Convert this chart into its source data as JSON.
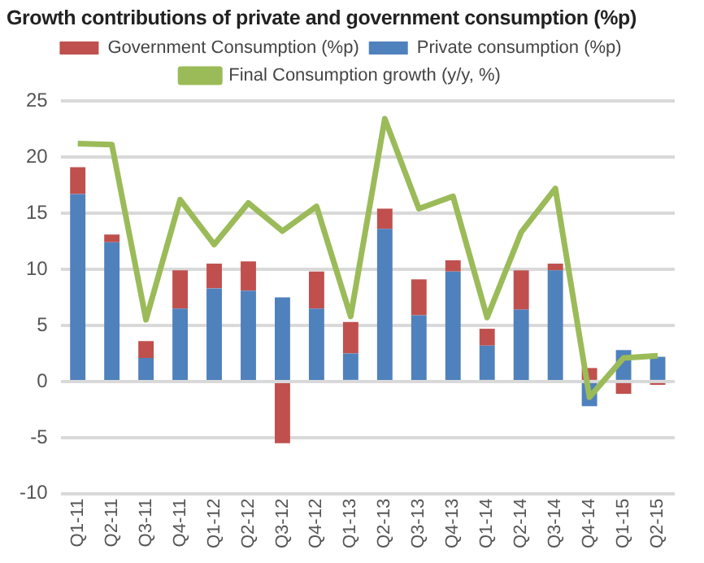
{
  "chart_data": {
    "type": "bar",
    "title": "Growth contributions of private and government consumption (%p)",
    "categories": [
      "Q1-11",
      "Q2-11",
      "Q3-11",
      "Q4-11",
      "Q1-12",
      "Q2-12",
      "Q3-12",
      "Q4-12",
      "Q1-13",
      "Q2-13",
      "Q3-13",
      "Q4-13",
      "Q1-14",
      "Q2-14",
      "Q3-14",
      "Q4-14",
      "Q1-15",
      "Q2-15"
    ],
    "stacked": true,
    "series": [
      {
        "name": "Private consumption (%p)",
        "color": "#4f81bd",
        "values": [
          16.7,
          12.4,
          2.1,
          6.5,
          8.3,
          8.1,
          7.5,
          6.5,
          2.5,
          13.6,
          5.9,
          9.8,
          3.2,
          6.4,
          9.9,
          -2.2,
          2.8,
          2.2
        ]
      },
      {
        "name": "Government Consumption (%p)",
        "color": "#c0504d",
        "values": [
          2.4,
          0.7,
          1.5,
          3.4,
          2.2,
          2.6,
          -5.5,
          3.3,
          2.8,
          1.8,
          3.2,
          1.0,
          1.5,
          3.5,
          0.6,
          1.2,
          -1.1,
          -0.3
        ]
      },
      {
        "name": "Final Consumption growth (y/y, %)",
        "type": "line",
        "color": "#9bbb59",
        "values": [
          21.2,
          21.1,
          5.5,
          16.2,
          12.2,
          15.9,
          13.4,
          15.6,
          5.8,
          23.4,
          15.4,
          16.5,
          5.7,
          13.3,
          17.2,
          -1.4,
          2.1,
          2.3
        ]
      }
    ],
    "ylim": [
      -10,
      25
    ],
    "yticks": [
      -10,
      -5,
      0,
      5,
      10,
      15,
      20,
      25
    ],
    "grid": "y",
    "legend": "top",
    "marker": "none"
  }
}
